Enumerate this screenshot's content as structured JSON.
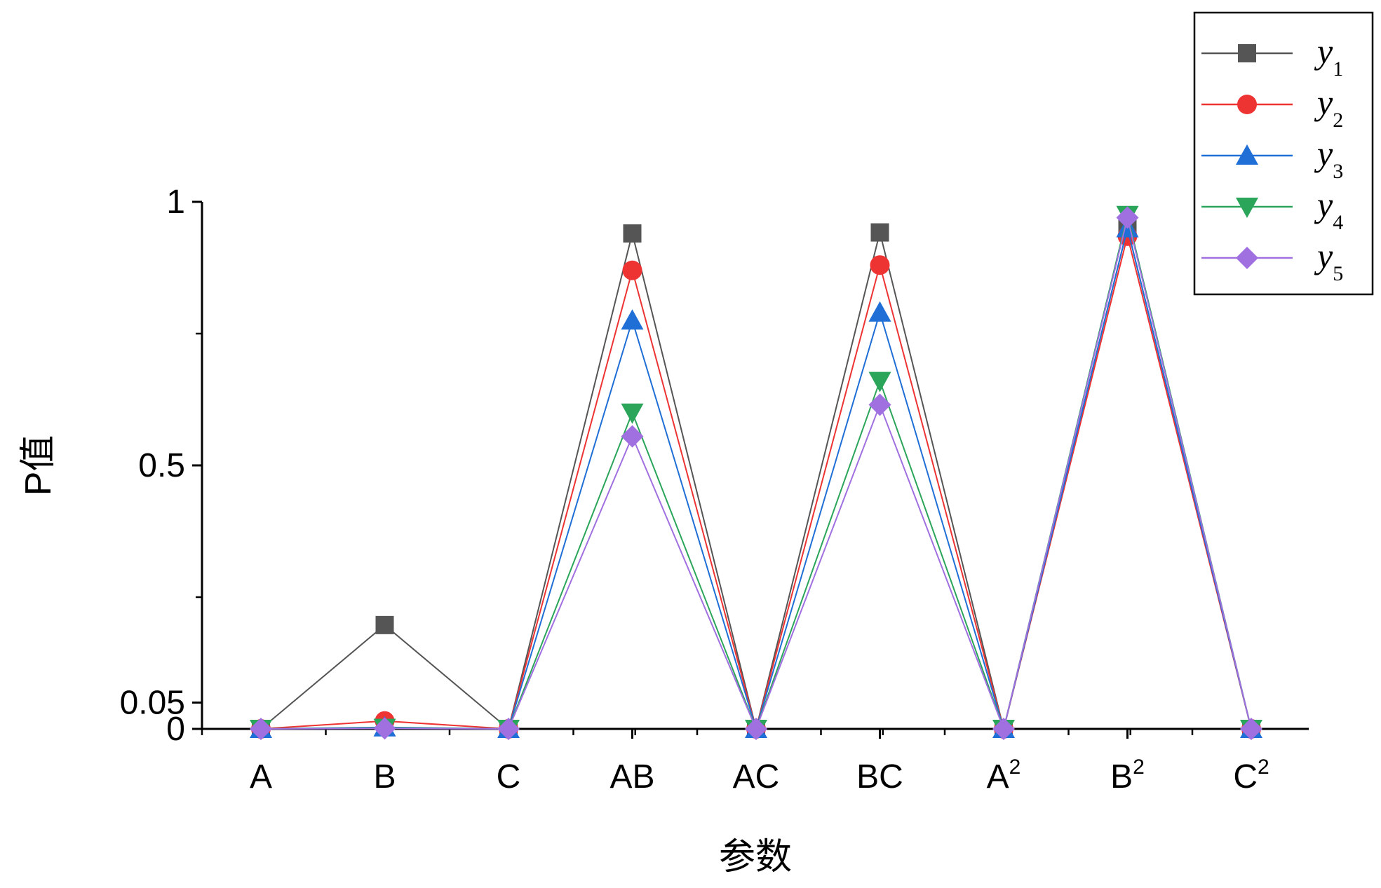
{
  "chart_data": {
    "type": "line",
    "categories": [
      {
        "base": "A",
        "sup": ""
      },
      {
        "base": "B",
        "sup": ""
      },
      {
        "base": "C",
        "sup": ""
      },
      {
        "base": "AB",
        "sup": ""
      },
      {
        "base": "AC",
        "sup": ""
      },
      {
        "base": "BC",
        "sup": ""
      },
      {
        "base": "A",
        "sup": "2"
      },
      {
        "base": "B",
        "sup": "2"
      },
      {
        "base": "C",
        "sup": "2"
      }
    ],
    "xlabel": "参数",
    "ylabel": "P值",
    "ylim": [
      0,
      1
    ],
    "yticks": [
      {
        "value": 0,
        "label": "0"
      },
      {
        "value": 0.05,
        "label": "0.05"
      },
      {
        "value": 0.5,
        "label": "0.5"
      },
      {
        "value": 1,
        "label": "1"
      }
    ],
    "y_minor_ticks": [
      0.25,
      0.75
    ],
    "grid": false,
    "legend_position": "top-right",
    "series": [
      {
        "name": "y",
        "sub": "1",
        "color": "#555555",
        "marker": "square",
        "values": [
          0.0,
          0.197,
          0.0,
          0.94,
          0.0,
          0.942,
          0.0,
          0.95,
          0.0
        ]
      },
      {
        "name": "y",
        "sub": "2",
        "color": "#ee3333",
        "marker": "circle",
        "values": [
          0.0,
          0.015,
          0.0,
          0.87,
          0.0,
          0.88,
          0.0,
          0.935,
          0.0
        ]
      },
      {
        "name": "y",
        "sub": "3",
        "color": "#1f6fd6",
        "marker": "triangle-up",
        "values": [
          0.0,
          0.003,
          0.0,
          0.775,
          0.0,
          0.79,
          0.0,
          0.95,
          0.0
        ]
      },
      {
        "name": "y",
        "sub": "4",
        "color": "#2aa55a",
        "marker": "triangle-down",
        "values": [
          0.0,
          0.002,
          0.0,
          0.6,
          0.0,
          0.66,
          0.0,
          0.975,
          0.0
        ]
      },
      {
        "name": "y",
        "sub": "5",
        "color": "#a070e0",
        "marker": "diamond",
        "values": [
          0.0,
          0.001,
          0.0,
          0.555,
          0.0,
          0.615,
          0.0,
          0.97,
          0.0
        ]
      }
    ]
  }
}
